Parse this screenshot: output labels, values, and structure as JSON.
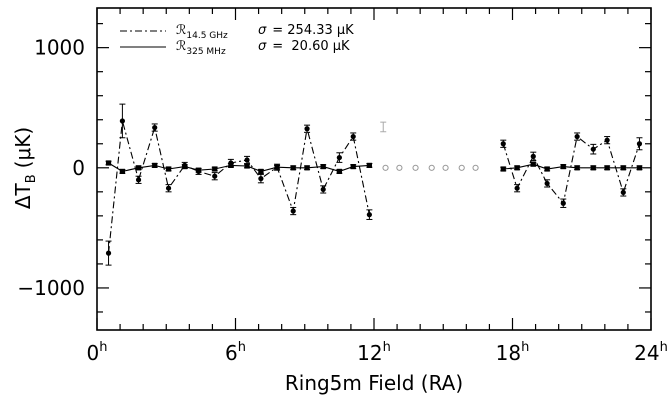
{
  "chart_data": {
    "type": "line",
    "xlabel": "Ring5m Field (RA)",
    "ylabel": "ΔT",
    "ylabel_sub": "B",
    "ylabel_unit": "(μK)",
    "xlim": [
      0,
      24
    ],
    "ylim": [
      -1350,
      1330
    ],
    "x_ticks": [
      {
        "value": 0,
        "main": "0",
        "sup": "h"
      },
      {
        "value": 6,
        "main": "6",
        "sup": "h"
      },
      {
        "value": 12,
        "main": "12",
        "sup": "h"
      },
      {
        "value": 18,
        "main": "18",
        "sup": "h"
      },
      {
        "value": 24,
        "main": "24",
        "sup": "h"
      }
    ],
    "y_ticks": [
      {
        "value": 1000,
        "label": "1000"
      },
      {
        "value": 0,
        "label": "0"
      },
      {
        "value": -1000,
        "label": "−1000"
      }
    ],
    "legend": {
      "position": "top-left",
      "entries": [
        {
          "symbol": "ℛ",
          "sub": "14.5 GHz",
          "sigma_label": "σ",
          "sigma_value": "= 254.33 μK",
          "style": "dashdot"
        },
        {
          "symbol": "ℛ",
          "sub": "325 MHz",
          "sigma_label": "σ",
          "sigma_value": "=  20.60 μK",
          "style": "solid"
        }
      ]
    },
    "series": [
      {
        "name": "ℛ 14.5 GHz",
        "style": "dashdot",
        "segments": [
          {
            "x": [
              0.5,
              1.1,
              1.8,
              2.5,
              3.1,
              3.8,
              4.4,
              5.1,
              5.8,
              6.5,
              7.1,
              7.8,
              8.5,
              9.1,
              9.8,
              10.5,
              11.1,
              11.8
            ],
            "y": [
              -710,
              390,
              -100,
              335,
              -170,
              20,
              -30,
              -70,
              40,
              65,
              -90,
              5,
              -360,
              325,
              -180,
              85,
              260,
              -390
            ],
            "err": [
              100,
              140,
              30,
              30,
              30,
              25,
              25,
              30,
              30,
              30,
              35,
              25,
              30,
              30,
              30,
              40,
              30,
              40
            ]
          },
          {
            "x": [
              17.6,
              18.2,
              18.9,
              19.5,
              20.2,
              20.8,
              21.5,
              22.1,
              22.8,
              23.5
            ],
            "y": [
              200,
              -170,
              95,
              -130,
              -295,
              260,
              155,
              230,
              -205,
              200
            ],
            "err": [
              30,
              30,
              35,
              30,
              35,
              30,
              40,
              30,
              30,
              50
            ]
          }
        ]
      },
      {
        "name": "ℛ 325 MHz",
        "style": "solid",
        "segments": [
          {
            "x": [
              0.5,
              1.1,
              1.8,
              2.5,
              3.1,
              3.8,
              4.4,
              5.1,
              5.8,
              6.5,
              7.1,
              7.8,
              8.5,
              9.1,
              9.8,
              10.5,
              11.1,
              11.8
            ],
            "y": [
              40,
              -30,
              0,
              20,
              -10,
              10,
              -20,
              -10,
              20,
              15,
              -30,
              5,
              0,
              0,
              10,
              -30,
              10,
              20
            ],
            "err": [
              15,
              15,
              15,
              15,
              15,
              15,
              15,
              15,
              15,
              15,
              15,
              15,
              15,
              15,
              15,
              15,
              15,
              15
            ]
          },
          {
            "x": [
              17.6,
              18.2,
              18.9,
              19.5,
              20.2,
              20.8,
              21.5,
              22.1,
              22.8,
              23.5
            ],
            "y": [
              -10,
              0,
              30,
              -10,
              10,
              0,
              0,
              0,
              0,
              0
            ],
            "err": [
              15,
              15,
              15,
              15,
              15,
              15,
              15,
              15,
              15,
              15
            ]
          }
        ]
      }
    ],
    "gap_markers": {
      "x": [
        12.5,
        13.1,
        13.8,
        14.5,
        15.1,
        15.8,
        16.4
      ],
      "y": [
        0,
        0,
        0,
        0,
        0,
        0,
        0
      ]
    },
    "gap_errorbar": {
      "x": 12.4,
      "y": 340,
      "err": 40
    }
  }
}
